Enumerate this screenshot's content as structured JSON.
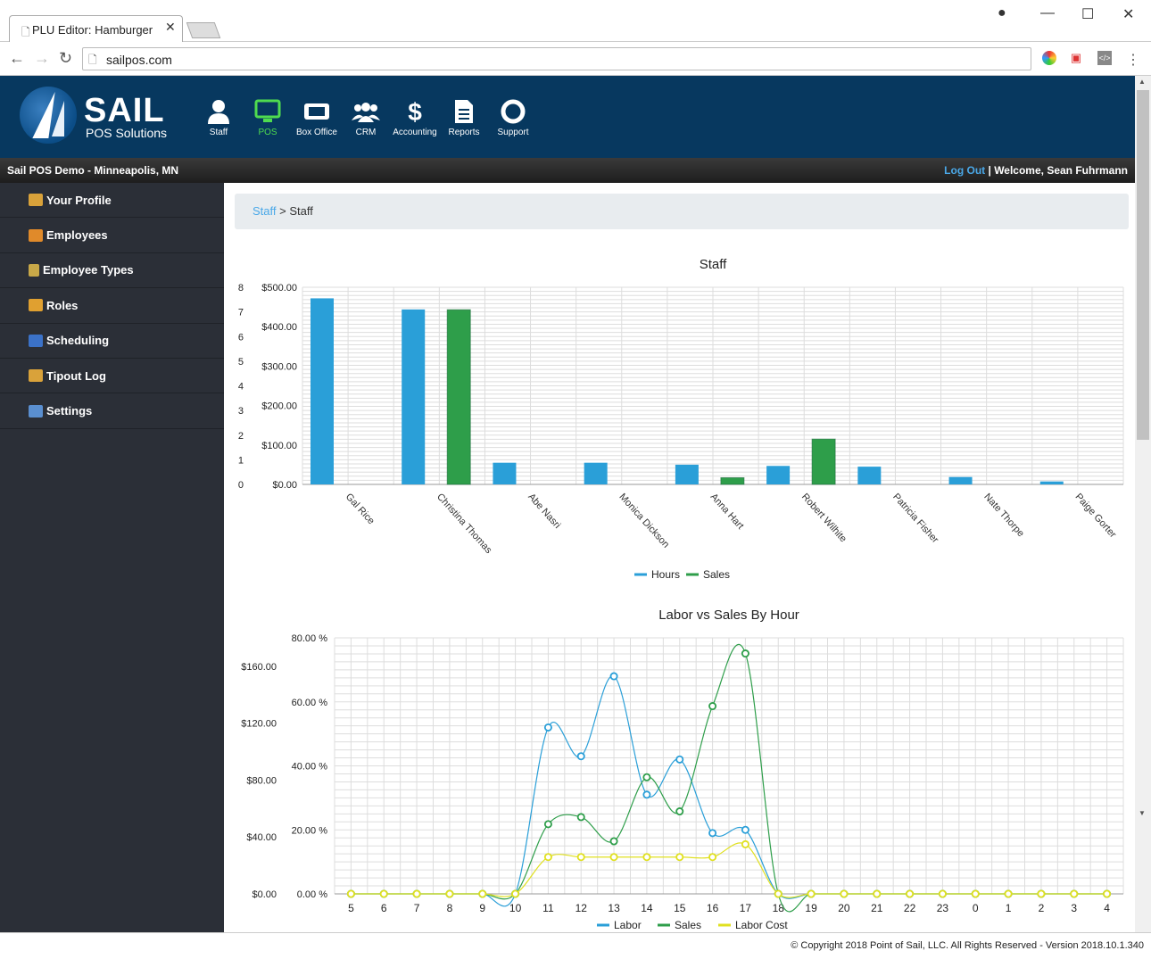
{
  "browser": {
    "tab_title": "PLU Editor: Hamburger",
    "url": "sailpos.com"
  },
  "header": {
    "brand": "SAIL",
    "brand_sub": "POS Solutions",
    "nav": [
      {
        "label": "Staff",
        "icon": "person-icon"
      },
      {
        "label": "POS",
        "icon": "monitor-icon",
        "active": true
      },
      {
        "label": "Box Office",
        "icon": "ticket-icon"
      },
      {
        "label": "CRM",
        "icon": "group-icon"
      },
      {
        "label": "Accounting",
        "icon": "dollar-icon"
      },
      {
        "label": "Reports",
        "icon": "document-icon"
      },
      {
        "label": "Support",
        "icon": "lifebuoy-icon"
      }
    ],
    "location": "Sail POS Demo - Minneapolis, MN",
    "logout": "Log Out",
    "separator": "|",
    "welcome": "Welcome, Sean Fuhrmann"
  },
  "sidebar": {
    "items": [
      {
        "label": "Your Profile",
        "icon": "trophy-icon",
        "color": "#d9a23a"
      },
      {
        "label": "Employees",
        "icon": "people-icon",
        "color": "#e08a2a"
      },
      {
        "label": "Employee Types",
        "icon": "badge-icon",
        "color": "#c8a848"
      },
      {
        "label": "Roles",
        "icon": "user-role-icon",
        "color": "#e0a030"
      },
      {
        "label": "Scheduling",
        "icon": "calendar-icon",
        "color": "#3b72c8"
      },
      {
        "label": "Tipout Log",
        "icon": "coins-icon",
        "color": "#d9a23a"
      },
      {
        "label": "Settings",
        "icon": "checklist-icon",
        "color": "#5a8fd0"
      }
    ]
  },
  "breadcrumb": {
    "link": "Staff",
    "sep": ">",
    "current": "Staff"
  },
  "footer": {
    "copyright": "© Copyright 2018 Point of Sail, LLC. All Rights Reserved - Version 2018.10.1.340"
  },
  "chart_data": [
    {
      "type": "bar",
      "title": "Staff",
      "categories": [
        "Gal Rice",
        "Christina Thomas",
        "Abe Nasri",
        "Monica Dickson",
        "Anna Hart",
        "Robert Wilhite",
        "Patricia  Fisher",
        "Nate Thorpe",
        "Paige Gorter"
      ],
      "series": [
        {
          "name": "Hours",
          "axis": "left",
          "color": "#2a9fd8",
          "values": [
            7.55,
            7.1,
            0.88,
            0.88,
            0.8,
            0.75,
            0.72,
            0.3,
            0.12
          ]
        },
        {
          "name": "Sales",
          "axis": "right",
          "color": "#2e9e4a",
          "values": [
            0,
            443,
            0,
            0,
            17,
            115,
            0,
            0,
            0
          ]
        }
      ],
      "y_left": {
        "ticks": [
          "0",
          "1",
          "2",
          "3",
          "4",
          "5",
          "6",
          "7",
          "8"
        ],
        "range": [
          0,
          8
        ]
      },
      "y_right": {
        "ticks": [
          "$0.00",
          "$100.00",
          "$200.00",
          "$300.00",
          "$400.00",
          "$500.00"
        ],
        "range": [
          0,
          500
        ]
      },
      "legend": "bottom"
    },
    {
      "type": "line",
      "title": "Labor vs Sales By Hour",
      "categories": [
        "5",
        "6",
        "7",
        "8",
        "9",
        "10",
        "11",
        "12",
        "13",
        "14",
        "15",
        "16",
        "17",
        "18",
        "19",
        "20",
        "21",
        "22",
        "23",
        "0",
        "1",
        "2",
        "3",
        "4"
      ],
      "series": [
        {
          "name": "Labor",
          "axis": "right",
          "color": "#2a9fd8",
          "values": [
            0,
            0,
            0,
            0,
            0,
            0,
            52,
            43,
            68,
            31,
            42,
            19,
            20,
            0,
            0,
            0,
            0,
            0,
            0,
            0,
            0,
            0,
            0,
            0
          ]
        },
        {
          "name": "Sales",
          "axis": "left",
          "color": "#2e9e4a",
          "values": [
            0,
            0,
            0,
            0,
            0,
            0,
            49,
            54,
            37,
            82,
            58,
            132,
            169,
            0,
            0,
            0,
            0,
            0,
            0,
            0,
            0,
            0,
            0,
            0
          ]
        },
        {
          "name": "Labor Cost",
          "axis": "right",
          "color": "#e0e020",
          "values": [
            0,
            0,
            0,
            0,
            0,
            0,
            11.5,
            11.5,
            11.5,
            11.5,
            11.5,
            11.5,
            15.5,
            0,
            0,
            0,
            0,
            0,
            0,
            0,
            0,
            0,
            0,
            0
          ]
        }
      ],
      "y_left": {
        "ticks": [
          "$0.00",
          "$40.00",
          "$80.00",
          "$120.00",
          "$160.00"
        ],
        "range": [
          0,
          180
        ]
      },
      "y_right": {
        "ticks": [
          "0.00 %",
          "20.00 %",
          "40.00 %",
          "60.00 %",
          "80.00 %"
        ],
        "range": [
          0,
          80
        ]
      },
      "legend": "bottom"
    }
  ]
}
